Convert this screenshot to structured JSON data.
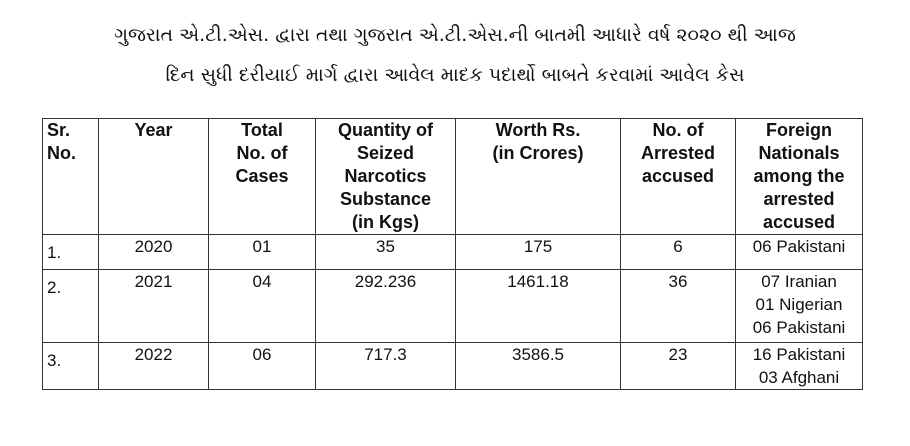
{
  "header": {
    "title_lines": [
      "ગુજરાત એ.ટી.એસ. દ્વારા તથા ગુજરાત એ.ટી.એસ.ની બાતમી આધારે વર્ષ ૨૦૨૦ થી આજ",
      "દિન સુધી દરીયાઈ માર્ગ દ્વારા આવેલ માદક પદાર્થો બાબતે કરવામાં આવેલ કેસ"
    ]
  },
  "table": {
    "columns": [
      [
        "Sr.",
        "No."
      ],
      [
        "Year"
      ],
      [
        "Total",
        "No. of",
        "Cases"
      ],
      [
        "Quantity of",
        "Seized",
        "Narcotics",
        "Substance",
        "(in Kgs)"
      ],
      [
        "Worth Rs.",
        "(in Crores)"
      ],
      [
        "No. of",
        "Arrested",
        "accused"
      ],
      [
        "Foreign",
        "Nationals",
        "among the",
        "arrested",
        "accused"
      ]
    ],
    "rows": [
      [
        [
          "1."
        ],
        [
          "2020"
        ],
        [
          "01"
        ],
        [
          "35"
        ],
        [
          "175"
        ],
        [
          "6"
        ],
        [
          "06 Pakistani"
        ]
      ],
      [
        [
          "2."
        ],
        [
          "2021"
        ],
        [
          "04"
        ],
        [
          "292.236"
        ],
        [
          "1461.18"
        ],
        [
          "36"
        ],
        [
          "07 Iranian",
          "01 Nigerian",
          "06 Pakistani"
        ]
      ],
      [
        [
          "3."
        ],
        [
          "2022"
        ],
        [
          "06"
        ],
        [
          "717.3"
        ],
        [
          "3586.5"
        ],
        [
          "23"
        ],
        [
          "16 Pakistani",
          "03 Afghani"
        ]
      ]
    ]
  }
}
